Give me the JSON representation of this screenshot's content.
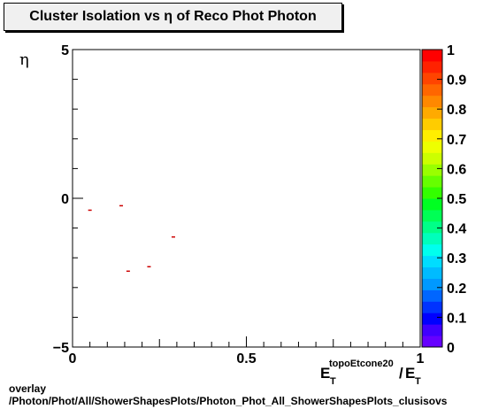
{
  "chart_data": {
    "type": "scatter",
    "title": "Cluster Isolation vs  η of Reco Phot Photon",
    "xlabel": {
      "base": "E",
      "base_sub": "T",
      "sup": "topoEtcone20",
      "sep": "/",
      "den": "E",
      "den_sub": "T"
    },
    "ylabel": "η",
    "xlim": [
      0,
      1
    ],
    "ylim": [
      -5,
      5
    ],
    "x_ticks": [
      "0",
      "0.5",
      "1"
    ],
    "y_ticks": [
      "−5",
      "0",
      "5"
    ],
    "colorbar": {
      "range": [
        0,
        1
      ],
      "ticks": [
        "0",
        "0.1",
        "0.2",
        "0.3",
        "0.4",
        "0.5",
        "0.6",
        "0.7",
        "0.8",
        "0.9",
        "1"
      ]
    },
    "points": [
      {
        "x": 0.05,
        "y": -0.4
      },
      {
        "x": 0.14,
        "y": -0.25
      },
      {
        "x": 0.29,
        "y": -1.3
      },
      {
        "x": 0.16,
        "y": -2.45
      },
      {
        "x": 0.22,
        "y": -2.3
      }
    ],
    "grid": false
  },
  "footer": {
    "line1": "overlay",
    "line2": "/Photon/Phot/All/ShowerShapesPlots/Photon_Phot_All_ShowerShapesPlots_clusisovs"
  },
  "colors": {
    "marker": "#cc0000"
  }
}
